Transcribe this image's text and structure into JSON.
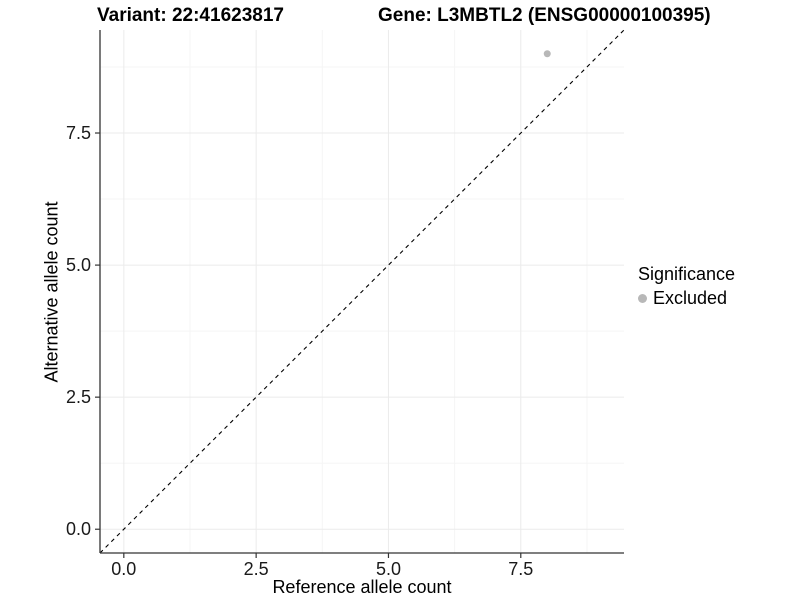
{
  "figure": {
    "titles": {
      "variant": "Variant: 22:41623817",
      "gene": "Gene: L3MBTL2 (ENSG00000100395)"
    },
    "axes": {
      "x": {
        "label": "Reference allele count",
        "tick_labels": [
          "0.0",
          "2.5",
          "5.0",
          "7.5"
        ]
      },
      "y": {
        "label": "Alternative allele count",
        "tick_labels": [
          "0.0",
          "2.5",
          "5.0",
          "7.5"
        ]
      }
    },
    "legend": {
      "title": "Significance",
      "items": [
        {
          "label": "Excluded",
          "color": "#b8b8b8",
          "marker": "circle-icon"
        }
      ]
    },
    "colors": {
      "background": "#ffffff",
      "axis_line": "#333333",
      "tick_mark": "#333333",
      "tick_text": "#1a1a1a",
      "major_grid": "#ebebeb",
      "minor_grid": "#f5f5f5",
      "identity_line": "#000000",
      "point": "#b8b8b8"
    }
  },
  "chart_data": {
    "type": "scatter",
    "title": "Variant: 22:41623817 | Gene: L3MBTL2 (ENSG00000100395)",
    "xlabel": "Reference allele count",
    "ylabel": "Alternative allele count",
    "xlim": [
      -0.45,
      9.45
    ],
    "ylim": [
      -0.45,
      9.45
    ],
    "x_ticks": [
      0,
      2.5,
      5,
      7.5
    ],
    "y_ticks": [
      0,
      2.5,
      5,
      7.5
    ],
    "x_minor_ticks": [
      1.25,
      3.75,
      6.25,
      8.75
    ],
    "y_minor_ticks": [
      1.25,
      3.75,
      6.25,
      8.75
    ],
    "grid": "major+minor",
    "legend_position": "right",
    "legend_title": "Significance",
    "series": [
      {
        "name": "Excluded",
        "color": "#b8b8b8",
        "marker_radius": 3.5,
        "points": [
          {
            "x": 8,
            "y": 9
          }
        ]
      }
    ],
    "reference_line": {
      "kind": "identity",
      "style": "dashed",
      "from": [
        -0.45,
        -0.45
      ],
      "to": [
        9.45,
        9.45
      ]
    }
  }
}
